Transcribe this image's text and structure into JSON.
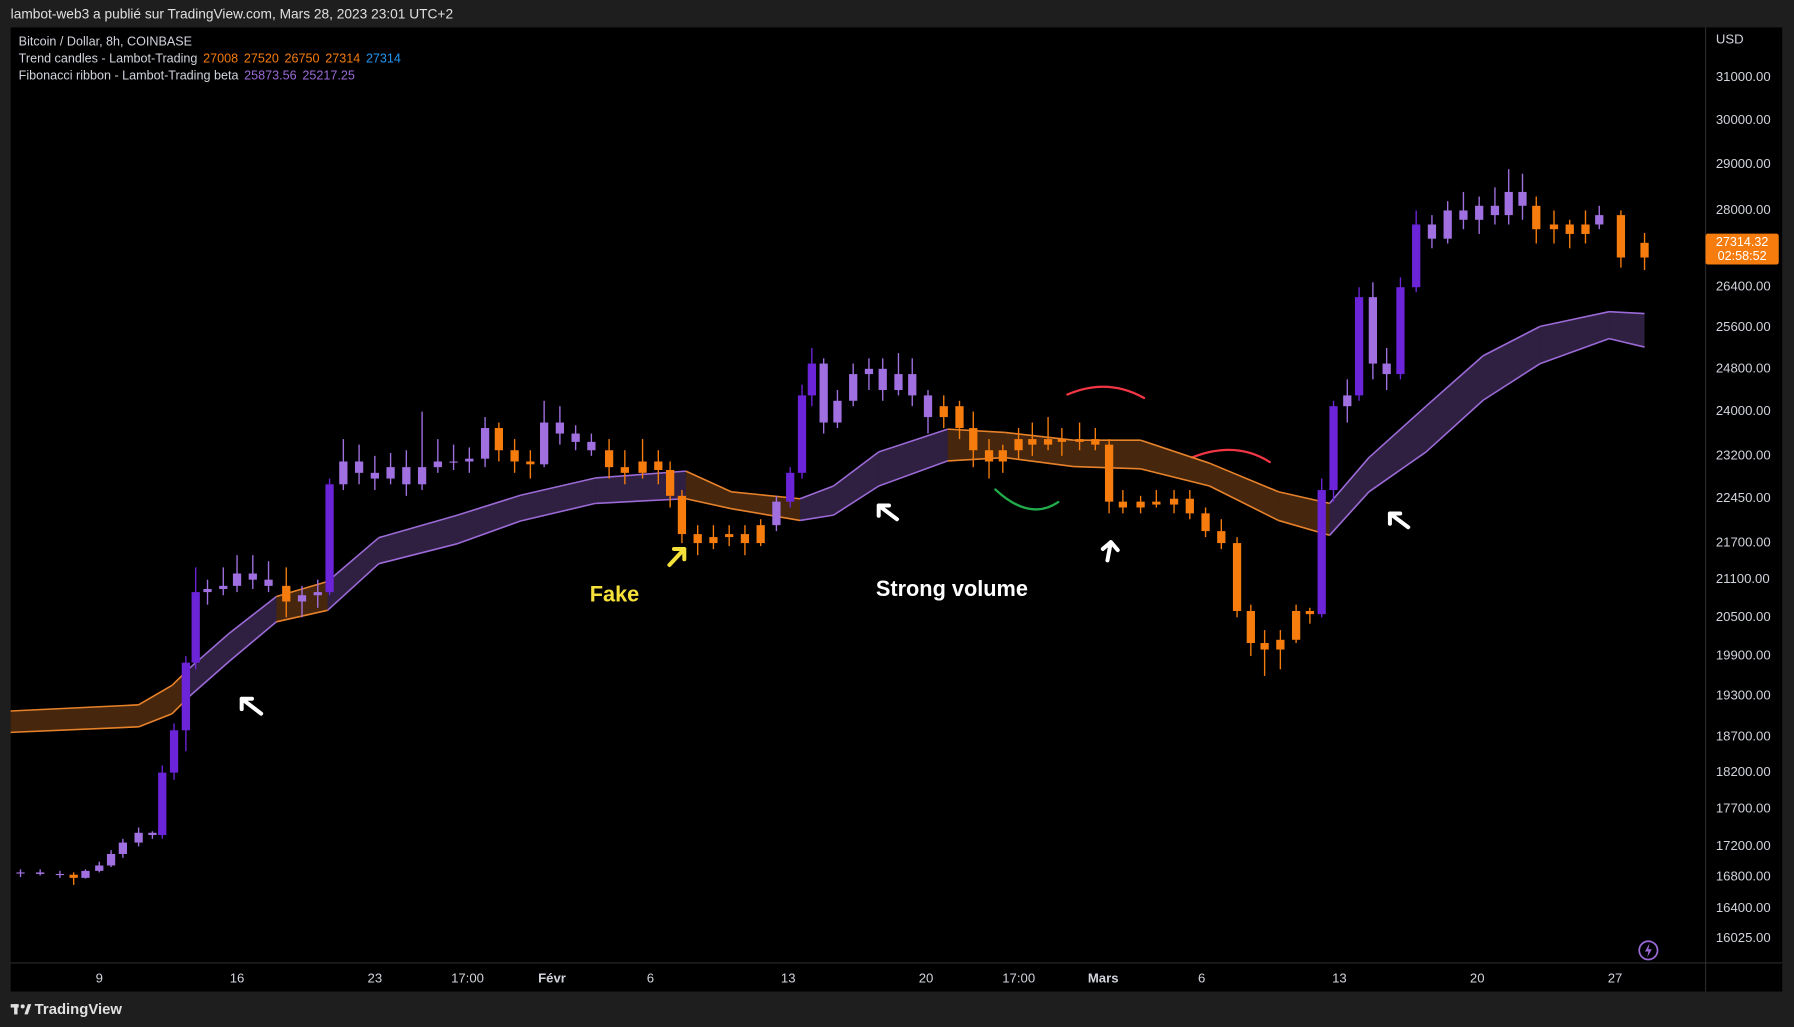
{
  "header": "lambot-web3 a publié sur TradingView.com, Mars 28, 2023 23:01 UTC+2",
  "footer": "TradingView",
  "chart_data": {
    "type": "candlestick",
    "symbol": "Bitcoin / Dollar, 8h, COINBASE",
    "indicators": [
      "Trend candles - Lambot-Trading",
      "Fibonacci ribbon - Lambot-Trading beta"
    ],
    "currency": "USD",
    "log_scale": true,
    "grid": false,
    "xlim": [
      4.5,
      90.6
    ],
    "xticks": [
      {
        "value": 9,
        "label": "9"
      },
      {
        "value": 16,
        "label": "16"
      },
      {
        "value": 23,
        "label": "23"
      },
      {
        "value": 27.708,
        "label": "17:00"
      },
      {
        "value": 32,
        "label": "Févr"
      },
      {
        "value": 37,
        "label": "6"
      },
      {
        "value": 44,
        "label": "13"
      },
      {
        "value": 51,
        "label": "20"
      },
      {
        "value": 55.708,
        "label": "17:00"
      },
      {
        "value": 60,
        "label": "Mars"
      },
      {
        "value": 65,
        "label": "6"
      },
      {
        "value": 72,
        "label": "13"
      },
      {
        "value": 79,
        "label": "20"
      },
      {
        "value": 86,
        "label": "27"
      }
    ],
    "ylim": [
      15730,
      32215
    ],
    "yticks": [
      {
        "value": 31000,
        "label": "31000.00"
      },
      {
        "value": 30000,
        "label": "30000.00"
      },
      {
        "value": 29000,
        "label": "29000.00"
      },
      {
        "value": 28000,
        "label": "28000.00"
      },
      {
        "value": 26400,
        "label": "26400.00"
      },
      {
        "value": 25600,
        "label": "25600.00"
      },
      {
        "value": 24800,
        "label": "24800.00"
      },
      {
        "value": 24000,
        "label": "24000.00"
      },
      {
        "value": 23200,
        "label": "23200.00"
      },
      {
        "value": 22450,
        "label": "22450.00"
      },
      {
        "value": 21700,
        "label": "21700.00"
      },
      {
        "value": 21100,
        "label": "21100.00"
      },
      {
        "value": 20500,
        "label": "20500.00"
      },
      {
        "value": 19900,
        "label": "19900.00"
      },
      {
        "value": 19300,
        "label": "19300.00"
      },
      {
        "value": 18700,
        "label": "18700.00"
      },
      {
        "value": 18200,
        "label": "18200.00"
      },
      {
        "value": 17700,
        "label": "17700.00"
      },
      {
        "value": 17200,
        "label": "17200.00"
      },
      {
        "value": 16800,
        "label": "16800.00"
      },
      {
        "value": 16400,
        "label": "16400.00"
      },
      {
        "value": 16025,
        "label": "16025.00"
      }
    ],
    "x": [
      5.0,
      6.0,
      7.0,
      7.7,
      8.3,
      9.0,
      9.6,
      10.2,
      11.0,
      11.7,
      12.2,
      12.8,
      13.4,
      13.9,
      14.5,
      15.3,
      16.0,
      16.8,
      17.6,
      18.5,
      19.3,
      20.1,
      20.7,
      21.4,
      22.2,
      23.0,
      23.8,
      24.6,
      25.4,
      26.2,
      27.0,
      27.8,
      28.6,
      29.3,
      30.1,
      30.9,
      31.6,
      32.4,
      33.2,
      34.0,
      34.9,
      35.7,
      36.6,
      37.4,
      38.0,
      38.6,
      39.4,
      40.2,
      41.0,
      41.8,
      42.6,
      43.4,
      44.1,
      44.7,
      45.2,
      45.8,
      46.5,
      47.3,
      48.1,
      48.8,
      49.6,
      50.3,
      51.1,
      51.9,
      52.7,
      53.4,
      54.2,
      54.9,
      55.7,
      56.4,
      57.2,
      57.9,
      58.8,
      59.6,
      60.3,
      61.0,
      61.9,
      62.7,
      63.6,
      64.4,
      65.2,
      66.0,
      66.8,
      67.5,
      68.2,
      69.0,
      69.8,
      70.5,
      71.1,
      71.7,
      72.4,
      73.0,
      73.7,
      74.4,
      75.1,
      75.9,
      76.7,
      77.5,
      78.3,
      79.1,
      79.9,
      80.6,
      81.3,
      82.0,
      82.9,
      83.7,
      84.5,
      85.2,
      86.3,
      87.5
    ],
    "ohlc": [
      [
        16850,
        16900,
        16800,
        16860
      ],
      [
        16860,
        16900,
        16820,
        16840
      ],
      [
        16840,
        16880,
        16790,
        16830
      ],
      [
        16830,
        16860,
        16700,
        16790
      ],
      [
        16790,
        16900,
        16780,
        16880
      ],
      [
        16880,
        17000,
        16860,
        16950
      ],
      [
        16950,
        17150,
        16930,
        17100
      ],
      [
        17100,
        17300,
        17050,
        17250
      ],
      [
        17250,
        17450,
        17200,
        17380
      ],
      [
        17380,
        17400,
        17300,
        17350
      ],
      [
        17350,
        18300,
        17300,
        18200
      ],
      [
        18200,
        18900,
        18100,
        18800
      ],
      [
        18800,
        19900,
        18500,
        19800
      ],
      [
        19800,
        21300,
        19700,
        20900
      ],
      [
        20900,
        21100,
        20700,
        20950
      ],
      [
        20950,
        21300,
        20850,
        21000
      ],
      [
        21000,
        21500,
        20900,
        21200
      ],
      [
        21200,
        21500,
        20950,
        21100
      ],
      [
        21100,
        21400,
        20900,
        21000
      ],
      [
        21000,
        21300,
        20500,
        20750
      ],
      [
        20750,
        21000,
        20500,
        20850
      ],
      [
        20850,
        21100,
        20650,
        20900
      ],
      [
        20900,
        22800,
        20850,
        22700
      ],
      [
        22700,
        23500,
        22600,
        23100
      ],
      [
        23100,
        23400,
        22700,
        22900
      ],
      [
        22900,
        23200,
        22600,
        22800
      ],
      [
        22800,
        23250,
        22700,
        23000
      ],
      [
        23000,
        23300,
        22500,
        22700
      ],
      [
        22700,
        24000,
        22600,
        23000
      ],
      [
        23000,
        23500,
        22900,
        23100
      ],
      [
        23100,
        23400,
        22950,
        23100
      ],
      [
        23100,
        23350,
        22900,
        23150
      ],
      [
        23150,
        23900,
        23000,
        23700
      ],
      [
        23700,
        23800,
        23100,
        23300
      ],
      [
        23300,
        23500,
        22900,
        23100
      ],
      [
        23100,
        23300,
        22800,
        23050
      ],
      [
        23050,
        24200,
        23000,
        23800
      ],
      [
        23800,
        24100,
        23400,
        23600
      ],
      [
        23600,
        23750,
        23300,
        23450
      ],
      [
        23450,
        23600,
        23200,
        23300
      ],
      [
        23300,
        23500,
        22800,
        23000
      ],
      [
        23000,
        23300,
        22700,
        22900
      ],
      [
        22900,
        23500,
        22800,
        23100
      ],
      [
        23100,
        23300,
        22700,
        22950
      ],
      [
        22950,
        23100,
        22300,
        22500
      ],
      [
        22500,
        22600,
        21700,
        21850
      ],
      [
        21850,
        22000,
        21500,
        21700
      ],
      [
        21700,
        22000,
        21600,
        21800
      ],
      [
        21800,
        22000,
        21650,
        21850
      ],
      [
        21850,
        22000,
        21500,
        21700
      ],
      [
        21700,
        22100,
        21650,
        22000
      ],
      [
        22000,
        22500,
        21900,
        22400
      ],
      [
        22400,
        23000,
        22300,
        22900
      ],
      [
        22900,
        24500,
        22800,
        24300
      ],
      [
        24300,
        25200,
        24100,
        24900
      ],
      [
        24900,
        25000,
        23600,
        23800
      ],
      [
        23800,
        24400,
        23700,
        24200
      ],
      [
        24200,
        24900,
        24100,
        24700
      ],
      [
        24700,
        25000,
        24400,
        24800
      ],
      [
        24800,
        25000,
        24200,
        24400
      ],
      [
        24400,
        25100,
        24300,
        24700
      ],
      [
        24700,
        25000,
        24100,
        24300
      ],
      [
        24300,
        24400,
        23600,
        23900
      ],
      [
        23900,
        24300,
        23700,
        24100
      ],
      [
        24100,
        24200,
        23500,
        23700
      ],
      [
        23700,
        24000,
        23000,
        23300
      ],
      [
        23300,
        23500,
        22800,
        23100
      ],
      [
        23100,
        23400,
        22900,
        23300
      ],
      [
        23300,
        23700,
        23150,
        23500
      ],
      [
        23500,
        23800,
        23200,
        23400
      ],
      [
        23400,
        23900,
        23300,
        23500
      ],
      [
        23500,
        23700,
        23200,
        23450
      ],
      [
        23450,
        23800,
        23300,
        23500
      ],
      [
        23500,
        23700,
        23300,
        23400
      ],
      [
        23400,
        23500,
        22200,
        22400
      ],
      [
        22400,
        22600,
        22200,
        22300
      ],
      [
        22300,
        22500,
        22200,
        22400
      ],
      [
        22400,
        22600,
        22300,
        22350
      ],
      [
        22350,
        22600,
        22200,
        22450
      ],
      [
        22450,
        22600,
        22100,
        22200
      ],
      [
        22200,
        22300,
        21800,
        21900
      ],
      [
        21900,
        22100,
        21600,
        21700
      ],
      [
        21700,
        21800,
        20500,
        20600
      ],
      [
        20600,
        20700,
        19900,
        20100
      ],
      [
        20100,
        20300,
        19600,
        20000
      ],
      [
        20000,
        20300,
        19700,
        20150
      ],
      [
        20150,
        20700,
        20100,
        20600
      ],
      [
        20600,
        20650,
        20400,
        20550
      ],
      [
        20550,
        22800,
        20500,
        22600
      ],
      [
        22600,
        24200,
        22400,
        24100
      ],
      [
        24100,
        24600,
        23800,
        24300
      ],
      [
        24300,
        26400,
        24200,
        26200
      ],
      [
        26200,
        26500,
        24600,
        24900
      ],
      [
        24900,
        25200,
        24400,
        24700
      ],
      [
        24700,
        26600,
        24600,
        26400
      ],
      [
        26400,
        28000,
        26300,
        27700
      ],
      [
        27700,
        27900,
        27200,
        27400
      ],
      [
        27400,
        28200,
        27300,
        28000
      ],
      [
        28000,
        28400,
        27600,
        27800
      ],
      [
        27800,
        28300,
        27500,
        28100
      ],
      [
        28100,
        28500,
        27700,
        27900
      ],
      [
        27900,
        28900,
        27700,
        28400
      ],
      [
        28400,
        28800,
        27800,
        28100
      ],
      [
        28100,
        28300,
        27300,
        27600
      ],
      [
        27600,
        28000,
        27300,
        27700
      ],
      [
        27700,
        27800,
        27200,
        27500
      ],
      [
        27500,
        28000,
        27300,
        27700
      ],
      [
        27700,
        28100,
        27600,
        27900
      ],
      [
        27900,
        28000,
        26800,
        27008
      ],
      [
        27008,
        27520,
        26750,
        27314
      ]
    ],
    "colors": [
      "#a070e0",
      "#a070e0",
      "#a070e0",
      "#f57c0d",
      "#a070e0",
      "#a070e0",
      "#a070e0",
      "#a070e0",
      "#a070e0",
      "#a070e0",
      "#6c24d8",
      "#6c24d8",
      "#6c24d8",
      "#6c24d8",
      "#a070e0",
      "#a070e0",
      "#a070e0",
      "#a070e0",
      "#a070e0",
      "#f57c0d",
      "#a070e0",
      "#a070e0",
      "#6c24d8",
      "#a070e0",
      "#a070e0",
      "#a070e0",
      "#a070e0",
      "#a070e0",
      "#a070e0",
      "#a070e0",
      "#a070e0",
      "#a070e0",
      "#a070e0",
      "#f57c0d",
      "#f57c0d",
      "#f57c0d",
      "#a070e0",
      "#a070e0",
      "#a070e0",
      "#a070e0",
      "#f57c0d",
      "#f57c0d",
      "#f57c0d",
      "#f57c0d",
      "#f57c0d",
      "#f57c0d",
      "#f57c0d",
      "#f57c0d",
      "#f57c0d",
      "#f57c0d",
      "#f57c0d",
      "#a070e0",
      "#6c24d8",
      "#6c24d8",
      "#6c24d8",
      "#a070e0",
      "#a070e0",
      "#a070e0",
      "#a070e0",
      "#a070e0",
      "#a070e0",
      "#a070e0",
      "#a070e0",
      "#f57c0d",
      "#f57c0d",
      "#f57c0d",
      "#f57c0d",
      "#f57c0d",
      "#f57c0d",
      "#f57c0d",
      "#f57c0d",
      "#f57c0d",
      "#f57c0d",
      "#f57c0d",
      "#f57c0d",
      "#f57c0d",
      "#f57c0d",
      "#f57c0d",
      "#f57c0d",
      "#f57c0d",
      "#f57c0d",
      "#f57c0d",
      "#f57c0d",
      "#f57c0d",
      "#f57c0d",
      "#f57c0d",
      "#f57c0d",
      "#f57c0d",
      "#6c24d8",
      "#6c24d8",
      "#a070e0",
      "#6c24d8",
      "#a070e0",
      "#a070e0",
      "#6c24d8",
      "#6c24d8",
      "#a070e0",
      "#a070e0",
      "#a070e0",
      "#a070e0",
      "#a070e0",
      "#a070e0",
      "#a070e0",
      "#f57c0d",
      "#f57c0d",
      "#f57c0d",
      "#f57c0d",
      "#a070e0",
      "#f57c0d",
      "#f57c0d"
    ],
    "ribbon": {
      "x": [
        4.5,
        11.0,
        12.7,
        13.6,
        15.6,
        18.0,
        20.6,
        23.2,
        27.2,
        30.4,
        34.2,
        38.8,
        41.1,
        44.6,
        46.3,
        48.6,
        52.1,
        55.0,
        58.5,
        61.9,
        65.4,
        68.9,
        71.5,
        73.5,
        76.4,
        79.3,
        82.2,
        85.7,
        87.5
      ],
      "upper": [
        19080,
        19170,
        19460,
        19720,
        20250,
        20830,
        21070,
        21790,
        22170,
        22510,
        22810,
        22930,
        22570,
        22450,
        22670,
        23270,
        23680,
        23620,
        23480,
        23480,
        23070,
        22570,
        22370,
        23170,
        24100,
        25050,
        25620,
        25910,
        25873.56
      ],
      "lower": [
        18770,
        18850,
        19040,
        19300,
        19820,
        20430,
        20610,
        21360,
        21690,
        22070,
        22370,
        22450,
        22280,
        22080,
        22170,
        22670,
        23110,
        23170,
        23010,
        22970,
        22670,
        22080,
        21830,
        22570,
        23270,
        24210,
        24900,
        25380,
        25217.25
      ],
      "colors": [
        "#e8822a",
        "#e8822a",
        "#e8822a",
        "#9b6ad6",
        "#9b6ad6",
        "#e8822a",
        "#9b6ad6",
        "#9b6ad6",
        "#9b6ad6",
        "#9b6ad6",
        "#9b6ad6",
        "#e8822a",
        "#e8822a",
        "#9b6ad6",
        "#9b6ad6",
        "#9b6ad6",
        "#e8822a",
        "#e8822a",
        "#e8822a",
        "#e8822a",
        "#e8822a",
        "#e8822a",
        "#9b6ad6",
        "#9b6ad6",
        "#9b6ad6",
        "#9b6ad6",
        "#9b6ad6",
        "#9b6ad6",
        "#9b6ad6"
      ]
    },
    "last_price": 27314.32,
    "countdown": "02:58:52",
    "annotations": [
      {
        "text": "Fake",
        "color": "#f5e13a"
      },
      {
        "text": "Strong volume",
        "color": "#ffffff"
      }
    ]
  }
}
